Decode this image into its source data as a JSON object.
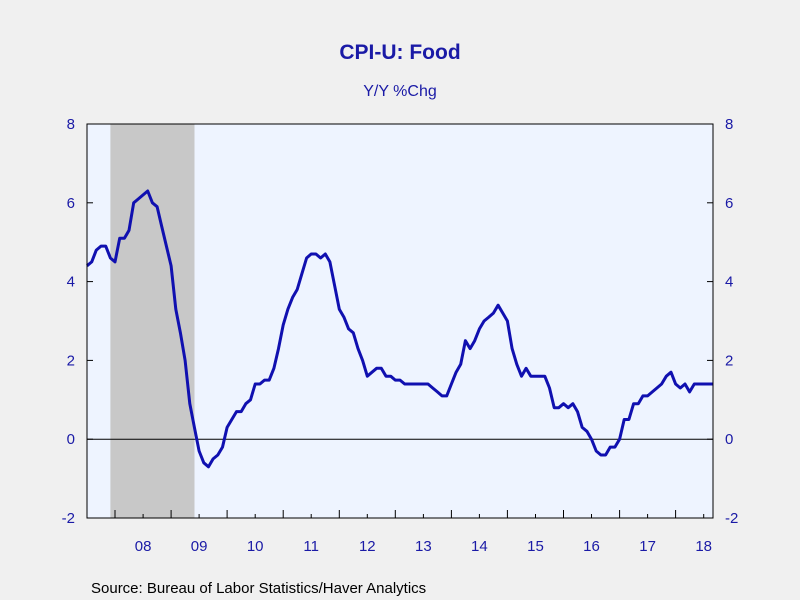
{
  "chart_data": {
    "type": "line",
    "title": "CPI-U: Food",
    "subtitle": "Y/Y %Chg",
    "source": "Source:  Bureau of Labor Statistics/Haver Analytics",
    "x_tick_labels": [
      "08",
      "09",
      "10",
      "11",
      "12",
      "13",
      "14",
      "15",
      "16",
      "17",
      "18"
    ],
    "y_tick_labels_left": [
      "8",
      "6",
      "4",
      "2",
      "0",
      "-2"
    ],
    "y_tick_labels_right": [
      "8",
      "6",
      "4",
      "2",
      "0",
      "-2"
    ],
    "ylim": [
      -2,
      8
    ],
    "xlim": [
      "2007-07",
      "2018-09"
    ],
    "recession": {
      "start": "2007-12",
      "end": "2009-06"
    },
    "zero_line": true,
    "grid": false,
    "colors": {
      "line": "#1010b0",
      "plot_background": "#eef4ff",
      "recession_shade": "#c8c8c8",
      "text": "#1a1aa6",
      "page_background": "#f0f0f0"
    },
    "series": [
      {
        "dates": [
          "2007-07",
          "2007-08",
          "2007-09",
          "2007-10",
          "2007-11",
          "2007-12",
          "2008-01",
          "2008-02",
          "2008-03",
          "2008-04",
          "2008-05",
          "2008-06",
          "2008-07",
          "2008-08",
          "2008-09",
          "2008-10",
          "2008-11",
          "2008-12",
          "2009-01",
          "2009-02",
          "2009-03",
          "2009-04",
          "2009-05",
          "2009-06",
          "2009-07",
          "2009-08",
          "2009-09",
          "2009-10",
          "2009-11",
          "2009-12",
          "2010-01",
          "2010-02",
          "2010-03",
          "2010-04",
          "2010-05",
          "2010-06",
          "2010-07",
          "2010-08",
          "2010-09",
          "2010-10",
          "2010-11",
          "2010-12",
          "2011-01",
          "2011-02",
          "2011-03",
          "2011-04",
          "2011-05",
          "2011-06",
          "2011-07",
          "2011-08",
          "2011-09",
          "2011-10",
          "2011-11",
          "2011-12",
          "2012-01",
          "2012-02",
          "2012-03",
          "2012-04",
          "2012-05",
          "2012-06",
          "2012-07",
          "2012-08",
          "2012-09",
          "2012-10",
          "2012-11",
          "2012-12",
          "2013-01",
          "2013-02",
          "2013-03",
          "2013-04",
          "2013-05",
          "2013-06",
          "2013-07",
          "2013-08",
          "2013-09",
          "2013-10",
          "2013-11",
          "2013-12",
          "2014-01",
          "2014-02",
          "2014-03",
          "2014-04",
          "2014-05",
          "2014-06",
          "2014-07",
          "2014-08",
          "2014-09",
          "2014-10",
          "2014-11",
          "2014-12",
          "2015-01",
          "2015-02",
          "2015-03",
          "2015-04",
          "2015-05",
          "2015-06",
          "2015-07",
          "2015-08",
          "2015-09",
          "2015-10",
          "2015-11",
          "2015-12",
          "2016-01",
          "2016-02",
          "2016-03",
          "2016-04",
          "2016-05",
          "2016-06",
          "2016-07",
          "2016-08",
          "2016-09",
          "2016-10",
          "2016-11",
          "2016-12",
          "2017-01",
          "2017-02",
          "2017-03",
          "2017-04",
          "2017-05",
          "2017-06",
          "2017-07",
          "2017-08",
          "2017-09",
          "2017-10",
          "2017-11",
          "2017-12",
          "2018-01",
          "2018-02",
          "2018-03",
          "2018-04",
          "2018-05",
          "2018-06",
          "2018-07",
          "2018-08",
          "2018-09"
        ],
        "values": [
          4.4,
          4.5,
          4.8,
          4.9,
          4.9,
          4.6,
          4.5,
          5.1,
          5.1,
          5.3,
          6.0,
          6.1,
          6.2,
          6.3,
          6.0,
          5.9,
          5.4,
          4.9,
          4.4,
          3.3,
          2.7,
          2.0,
          0.9,
          0.3,
          -0.3,
          -0.6,
          -0.7,
          -0.5,
          -0.4,
          -0.2,
          0.3,
          0.5,
          0.7,
          0.7,
          0.9,
          1.0,
          1.4,
          1.4,
          1.5,
          1.5,
          1.8,
          2.3,
          2.9,
          3.3,
          3.6,
          3.8,
          4.2,
          4.6,
          4.7,
          4.7,
          4.6,
          4.7,
          4.5,
          3.9,
          3.3,
          3.1,
          2.8,
          2.7,
          2.3,
          2.0,
          1.6,
          1.7,
          1.8,
          1.8,
          1.6,
          1.6,
          1.5,
          1.5,
          1.4,
          1.4,
          1.4,
          1.4,
          1.4,
          1.4,
          1.3,
          1.2,
          1.1,
          1.1,
          1.4,
          1.7,
          1.9,
          2.5,
          2.3,
          2.5,
          2.8,
          3.0,
          3.1,
          3.2,
          3.4,
          3.2,
          3.0,
          2.3,
          1.9,
          1.6,
          1.8,
          1.6,
          1.6,
          1.6,
          1.6,
          1.3,
          0.8,
          0.8,
          0.9,
          0.8,
          0.9,
          0.7,
          0.3,
          0.2,
          0.0,
          -0.3,
          -0.4,
          -0.4,
          -0.2,
          -0.2,
          0.0,
          0.5,
          0.5,
          0.9,
          0.9,
          1.1,
          1.1,
          1.2,
          1.3,
          1.4,
          1.6,
          1.7,
          1.4,
          1.3,
          1.4,
          1.2,
          1.4,
          1.4,
          1.4,
          1.4,
          1.4
        ]
      }
    ]
  }
}
